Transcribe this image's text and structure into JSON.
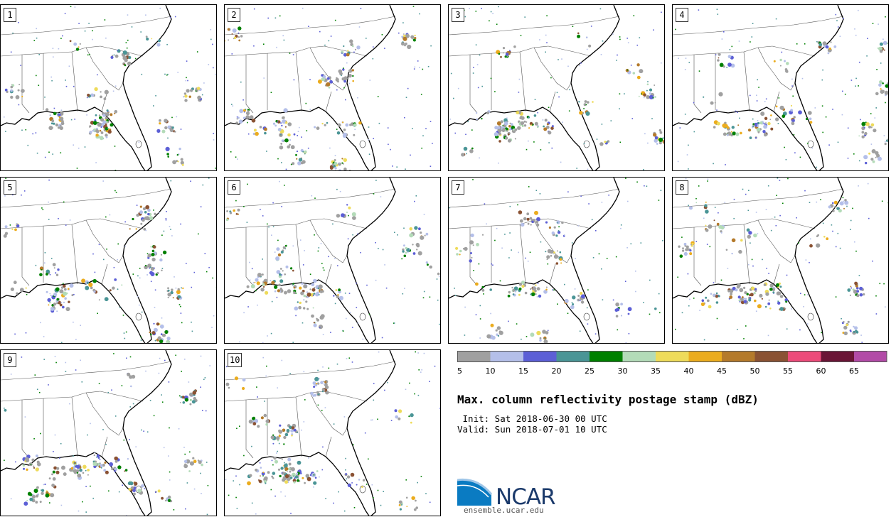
{
  "panels": [
    {
      "label": "1"
    },
    {
      "label": "2"
    },
    {
      "label": "3"
    },
    {
      "label": "4"
    },
    {
      "label": "5"
    },
    {
      "label": "6"
    },
    {
      "label": "7"
    },
    {
      "label": "8"
    },
    {
      "label": "9"
    },
    {
      "label": "10"
    }
  ],
  "colorbar": {
    "ticks": [
      "5",
      "10",
      "15",
      "20",
      "25",
      "30",
      "35",
      "40",
      "45",
      "50",
      "55",
      "60",
      "65"
    ],
    "colors": [
      "#a0a0a0",
      "#b4bfe9",
      "#5c5fd6",
      "#4a9596",
      "#008000",
      "#b3dbb8",
      "#eedb5a",
      "#ebac1e",
      "#b47a2b",
      "#8a5233",
      "#ec4b7a",
      "#6a1536",
      "#b24ba7"
    ]
  },
  "title": "Max. column reflectivity postage stamp (dBZ)",
  "init_line": " Init: Sat 2018-06-30 00 UTC",
  "valid_line": "Valid: Sun 2018-07-01 10 UTC",
  "logo": {
    "word": "NCAR",
    "url_text": "ensemble.ucar.edu"
  }
}
